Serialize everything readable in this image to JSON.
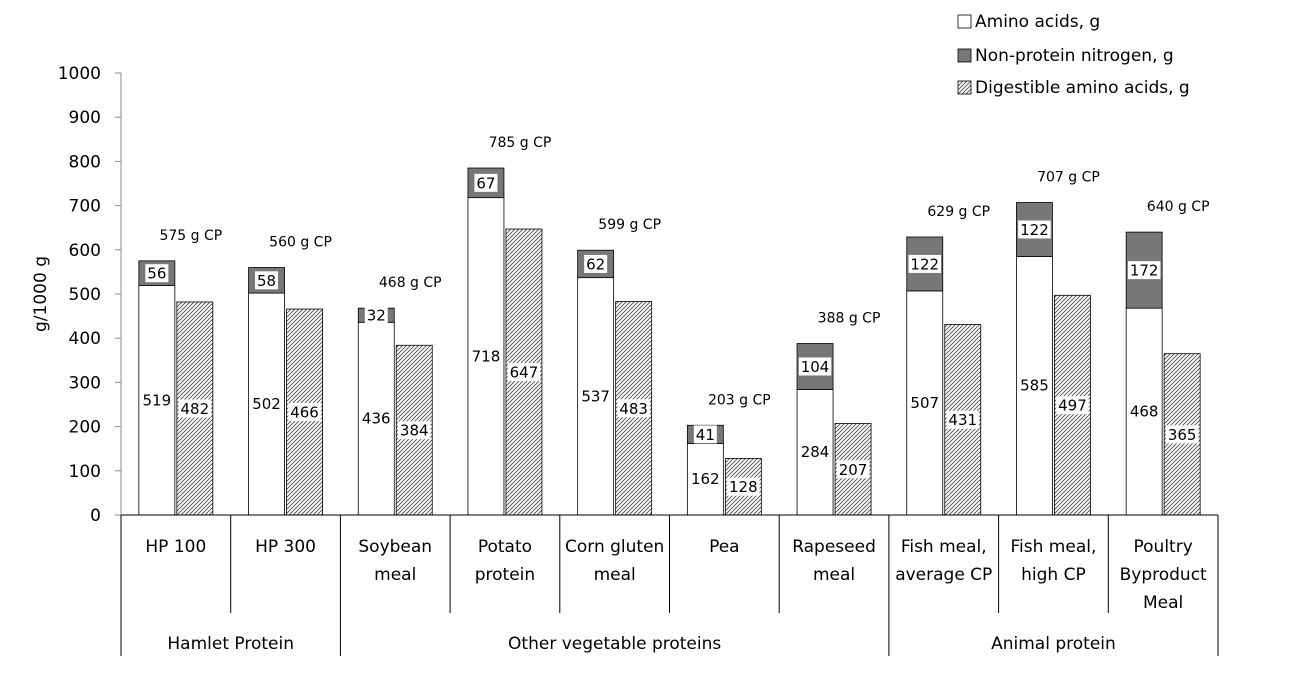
{
  "chart_data": {
    "type": "bar",
    "ylabel": "g/1000 g",
    "ylim": [
      0,
      1000
    ],
    "yticks": [
      "0",
      "100",
      "200",
      "300",
      "400",
      "500",
      "600",
      "700",
      "800",
      "900",
      "1000"
    ],
    "grid": false,
    "legend_position": "top-right",
    "series": [
      {
        "name": "Amino acids, g",
        "color": "#ffffff"
      },
      {
        "name": "Non-protein nitrogen, g",
        "color": "#777777"
      },
      {
        "name": "Digestible amino acids, g",
        "color": "hatched"
      }
    ],
    "categories": [
      {
        "lines": [
          "HP 100"
        ],
        "amino": 519,
        "npn": 56,
        "digestible": 482,
        "cp_label": "575 g CP"
      },
      {
        "lines": [
          "HP 300"
        ],
        "amino": 502,
        "npn": 58,
        "digestible": 466,
        "cp_label": "560 g CP"
      },
      {
        "lines": [
          "Soybean",
          "meal"
        ],
        "amino": 436,
        "npn": 32,
        "digestible": 384,
        "cp_label": "468 g CP"
      },
      {
        "lines": [
          "Potato",
          "protein"
        ],
        "amino": 718,
        "npn": 67,
        "digestible": 647,
        "cp_label": "785 g CP"
      },
      {
        "lines": [
          "Corn gluten",
          "meal"
        ],
        "amino": 537,
        "npn": 62,
        "digestible": 483,
        "cp_label": "599 g CP"
      },
      {
        "lines": [
          "Pea"
        ],
        "amino": 162,
        "npn": 41,
        "digestible": 128,
        "cp_label": "203 g CP"
      },
      {
        "lines": [
          "Rapeseed",
          "meal"
        ],
        "amino": 284,
        "npn": 104,
        "digestible": 207,
        "cp_label": "388 g CP"
      },
      {
        "lines": [
          "Fish meal,",
          "average CP"
        ],
        "amino": 507,
        "npn": 122,
        "digestible": 431,
        "cp_label": "629 g CP"
      },
      {
        "lines": [
          "Fish meal,",
          "high CP"
        ],
        "amino": 585,
        "npn": 122,
        "digestible": 497,
        "cp_label": "707 g CP"
      },
      {
        "lines": [
          "Poultry",
          "Byproduct",
          "Meal"
        ],
        "amino": 468,
        "npn": 172,
        "digestible": 365,
        "cp_label": "640 g CP"
      }
    ],
    "groups": [
      {
        "label": "Hamlet Protein",
        "start": 0,
        "end": 1
      },
      {
        "label": "Other vegetable proteins",
        "start": 2,
        "end": 6
      },
      {
        "label": "Animal protein",
        "start": 7,
        "end": 9
      }
    ]
  }
}
